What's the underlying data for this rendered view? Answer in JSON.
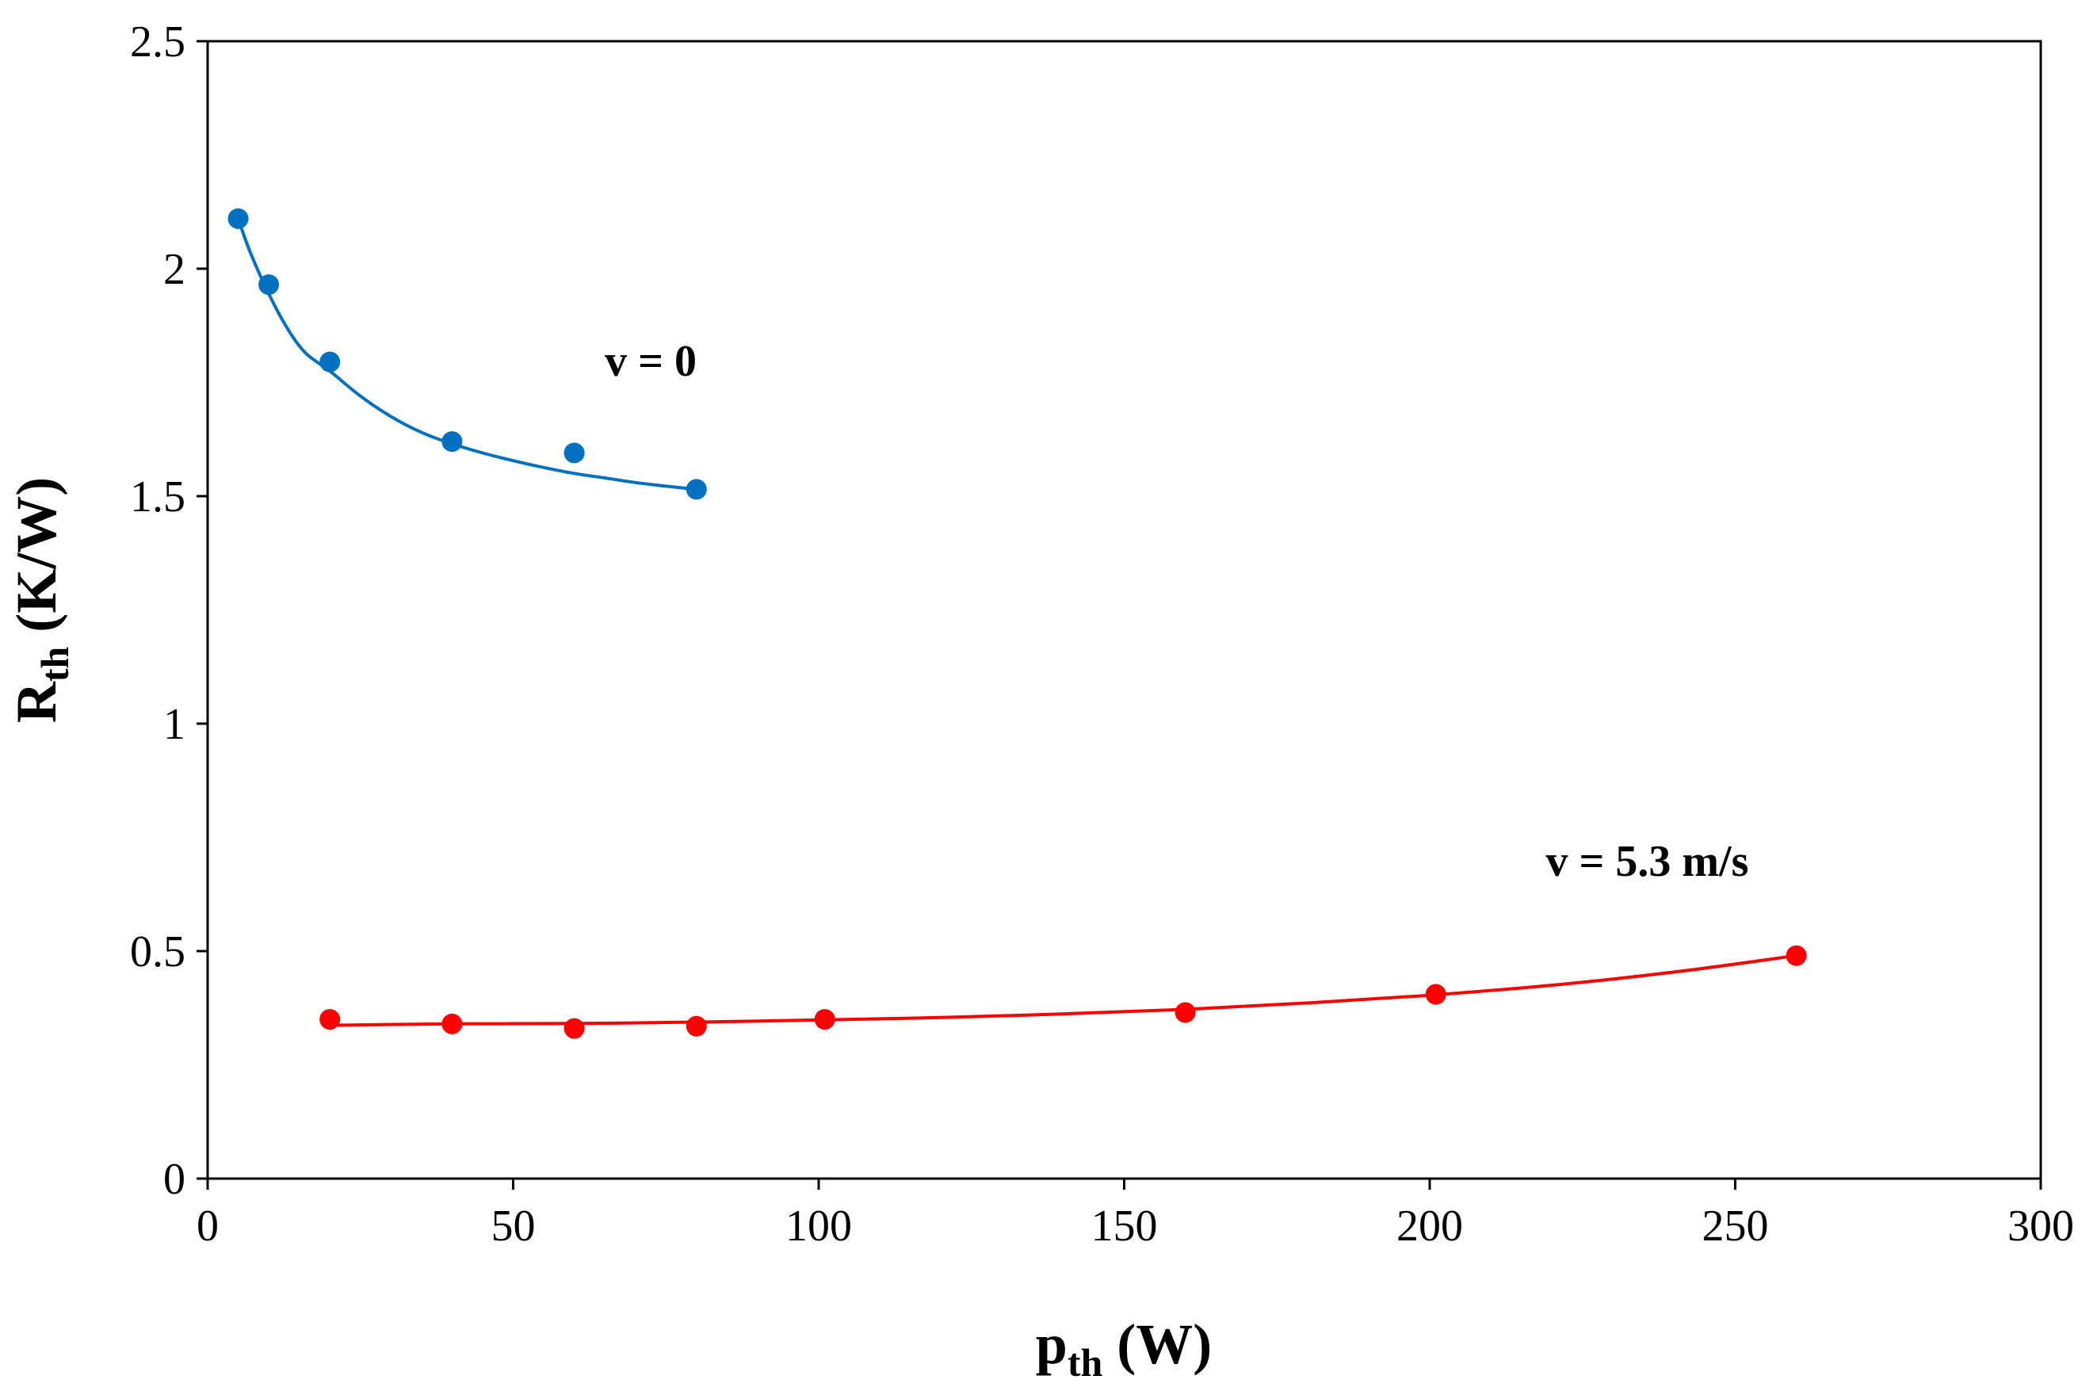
{
  "chart_data": {
    "type": "scatter",
    "title": "",
    "xlabel": {
      "main": "p",
      "sub": "th",
      "unit": " (W)"
    },
    "ylabel": {
      "main": "R",
      "sub": "th",
      "unit": " (K/W)"
    },
    "xlim": [
      0,
      300
    ],
    "ylim": [
      0,
      2.5
    ],
    "xticks": [
      0,
      50,
      100,
      150,
      200,
      250,
      300
    ],
    "xtick_labels": [
      "0",
      "50",
      "100",
      "150",
      "200",
      "250",
      "300"
    ],
    "yticks": [
      0,
      0.5,
      1,
      1.5,
      2,
      2.5
    ],
    "ytick_labels": [
      "0",
      "0.5",
      "1",
      "1.5",
      "2",
      "2.5"
    ],
    "grid": false,
    "series": [
      {
        "name": "v = 0",
        "color": "#0070C0",
        "x": [
          5,
          10,
          20,
          40,
          60,
          80
        ],
        "y": [
          2.11,
          1.965,
          1.795,
          1.62,
          1.595,
          1.515
        ],
        "fit_x": [
          5,
          7,
          10,
          13,
          16,
          20,
          25,
          30,
          35,
          40,
          45,
          50,
          55,
          60,
          65,
          70,
          75,
          80
        ],
        "fit_y": [
          2.11,
          2.035,
          1.945,
          1.87,
          1.815,
          1.775,
          1.72,
          1.675,
          1.64,
          1.615,
          1.595,
          1.578,
          1.563,
          1.55,
          1.54,
          1.53,
          1.522,
          1.515
        ],
        "label_anchor": [
          65,
          1.8
        ]
      },
      {
        "name": "v = 5.3 m/s",
        "color": "#FF0000",
        "x": [
          20,
          40,
          60,
          80,
          101,
          160,
          201,
          260
        ],
        "y": [
          0.35,
          0.34,
          0.33,
          0.335,
          0.35,
          0.365,
          0.405,
          0.49
        ],
        "fit_x": [
          20,
          40,
          60,
          80,
          101,
          120,
          140,
          160,
          180,
          200,
          220,
          240,
          260
        ],
        "fit_y": [
          0.337,
          0.34,
          0.341,
          0.344,
          0.349,
          0.354,
          0.362,
          0.372,
          0.386,
          0.403,
          0.425,
          0.454,
          0.49
        ],
        "label_anchor": [
          219,
          0.7
        ]
      }
    ]
  }
}
